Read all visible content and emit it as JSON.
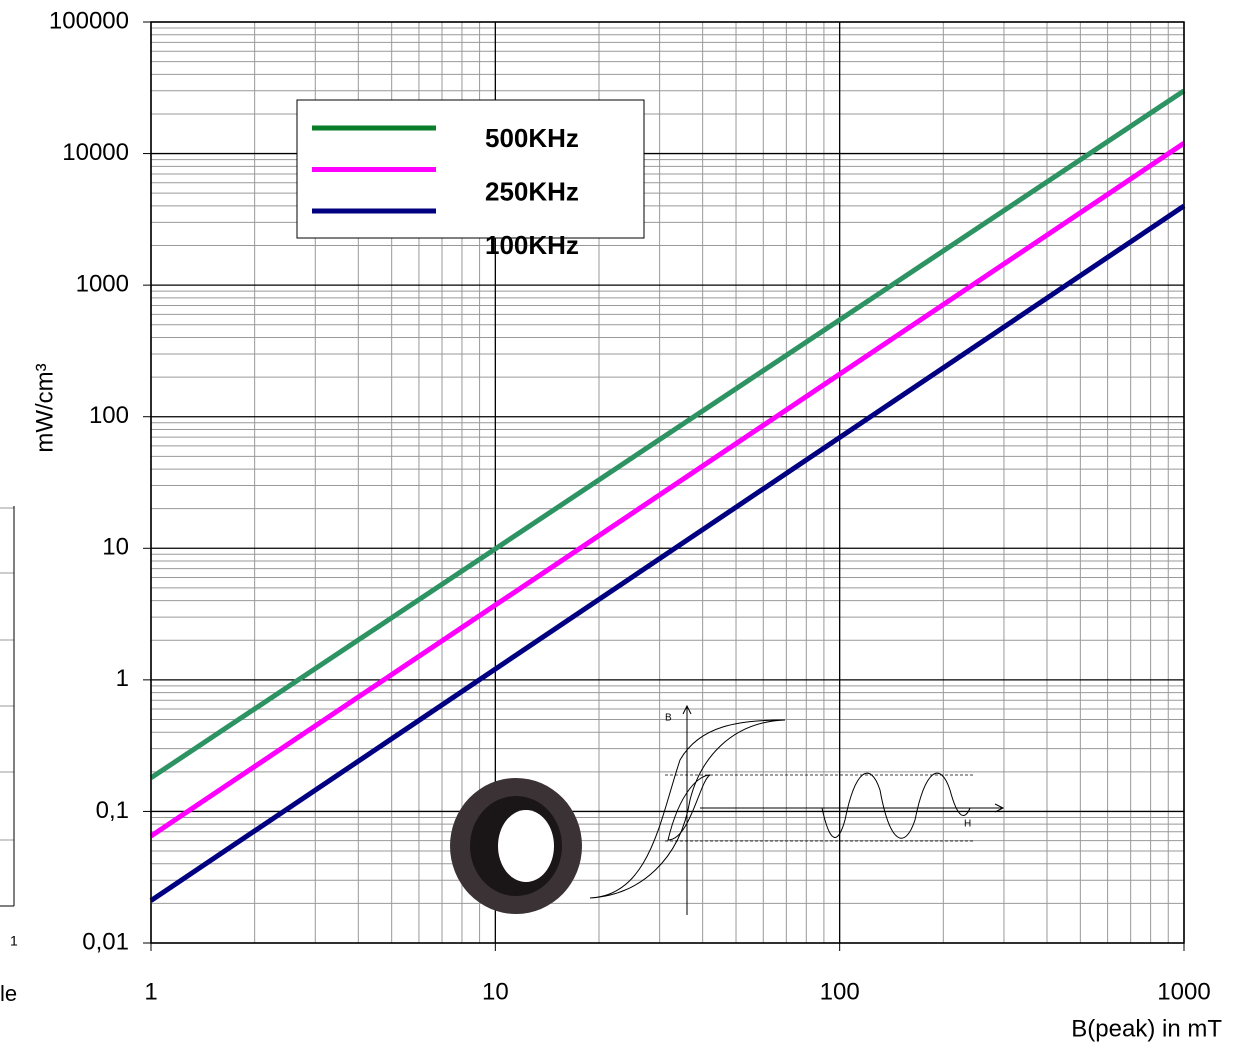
{
  "chart_data": {
    "type": "line",
    "y_label": "mW/cm³",
    "x_label": "B(peak) in mT",
    "log_x": true,
    "log_y": true,
    "grid": true,
    "minor_grid": true,
    "legend_position": "upper left",
    "xlim": [
      1,
      1000
    ],
    "xticks": [
      1,
      10,
      100,
      1000
    ],
    "ylim": [
      0.01,
      100000
    ],
    "yticks": [
      {
        "value": 0.01,
        "label": "0,01"
      },
      {
        "value": 0.1,
        "label": "0,1"
      },
      1,
      10,
      100,
      1000,
      10000,
      100000
    ],
    "x": [
      1,
      1000
    ],
    "series": [
      {
        "name": "500KHz",
        "color": "#2e9363",
        "legend_color": "#0a7d28",
        "values": [
          0.18,
          30000
        ]
      },
      {
        "name": "250KHz",
        "color": "#ff00ff",
        "legend_color": "#ff00ff",
        "values": [
          0.065,
          12000
        ]
      },
      {
        "name": "100KHz",
        "color": "#000080",
        "legend_color": "#000080",
        "values": [
          0.021,
          4000
        ]
      }
    ]
  },
  "illustration": {
    "b_axis": "B",
    "h_axis": "H"
  },
  "neighbor_fragment": {
    "texts": [
      "1",
      "le"
    ]
  }
}
